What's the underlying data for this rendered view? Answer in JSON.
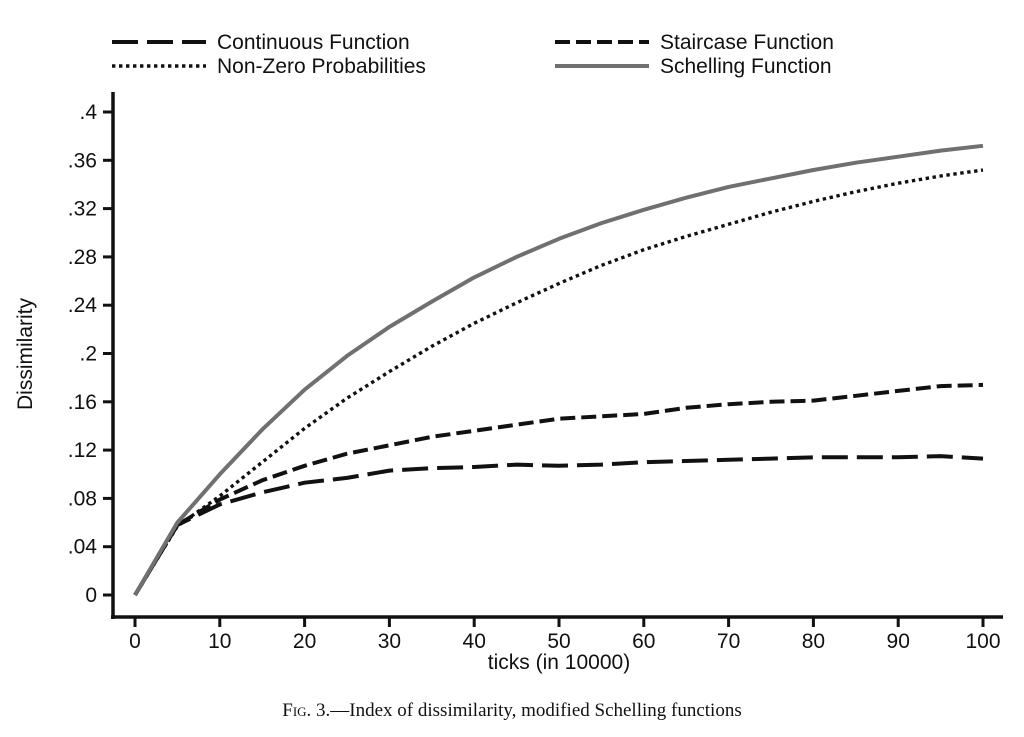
{
  "chart_data": {
    "type": "line",
    "xlabel": "ticks (in 10000)",
    "ylabel": "Dissimilarity",
    "xlim": [
      0,
      100
    ],
    "ylim": [
      0,
      0.4
    ],
    "xticks": [
      0,
      10,
      20,
      30,
      40,
      50,
      60,
      70,
      80,
      90,
      100
    ],
    "yticks": [
      0,
      0.04,
      0.08,
      0.12,
      0.16,
      0.2,
      0.24,
      0.28,
      0.32,
      0.36,
      0.4
    ],
    "ytick_labels": [
      "0",
      ".04",
      ".08",
      ".12",
      ".16",
      ".2",
      ".24",
      ".28",
      ".32",
      ".36",
      ".4"
    ],
    "grid": false,
    "legend_position": "top",
    "x": [
      0,
      5,
      10,
      15,
      20,
      25,
      30,
      35,
      40,
      45,
      50,
      55,
      60,
      65,
      70,
      75,
      80,
      85,
      90,
      95,
      100
    ],
    "series": [
      {
        "name": "Continuous Function",
        "style": "long-dash",
        "color": "#111111",
        "values": [
          0,
          0.058,
          0.075,
          0.085,
          0.093,
          0.097,
          0.103,
          0.105,
          0.106,
          0.108,
          0.107,
          0.108,
          0.11,
          0.111,
          0.112,
          0.113,
          0.114,
          0.114,
          0.114,
          0.115,
          0.113
        ]
      },
      {
        "name": "Staircase Function",
        "style": "short-dash",
        "color": "#111111",
        "values": [
          0,
          0.058,
          0.079,
          0.095,
          0.107,
          0.117,
          0.124,
          0.131,
          0.136,
          0.141,
          0.146,
          0.148,
          0.15,
          0.155,
          0.158,
          0.16,
          0.161,
          0.165,
          0.169,
          0.173,
          0.174
        ]
      },
      {
        "name": "Non-Zero Probabilities",
        "style": "dotted",
        "color": "#111111",
        "values": [
          0,
          0.057,
          0.082,
          0.11,
          0.138,
          0.163,
          0.185,
          0.206,
          0.225,
          0.242,
          0.258,
          0.273,
          0.286,
          0.297,
          0.307,
          0.317,
          0.326,
          0.334,
          0.341,
          0.347,
          0.352
        ]
      },
      {
        "name": "Schelling Function",
        "style": "solid",
        "color": "#707070",
        "values": [
          0,
          0.06,
          0.1,
          0.137,
          0.17,
          0.198,
          0.222,
          0.243,
          0.263,
          0.28,
          0.295,
          0.308,
          0.319,
          0.329,
          0.338,
          0.345,
          0.352,
          0.358,
          0.363,
          0.368,
          0.372
        ]
      }
    ]
  },
  "caption": {
    "fig_label": "Fig. 3.",
    "text": "—Index of dissimilarity, modified Schelling functions"
  }
}
